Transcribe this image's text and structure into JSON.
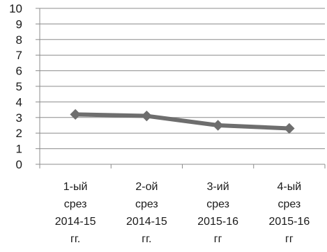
{
  "chart_data": {
    "type": "line",
    "categories": [
      [
        "1-ый",
        "срез",
        "2014-15",
        "гг."
      ],
      [
        "2-ой",
        "срез",
        "2014-15",
        "гг."
      ],
      [
        "3-ий",
        "срез",
        "2015-16",
        "гг"
      ],
      [
        "4-ый",
        "срез",
        "2015-16",
        "гг"
      ]
    ],
    "series": [
      {
        "values": [
          3.2,
          3.1,
          2.5,
          2.3
        ]
      }
    ],
    "ylim": [
      0,
      10
    ],
    "yticks": [
      "0",
      "1",
      "2",
      "3",
      "4",
      "5",
      "6",
      "7",
      "8",
      "9",
      "10"
    ],
    "grid": true,
    "legend": "none",
    "colors": {
      "series": "#6e6e6e",
      "grid": "#8c8c8c",
      "text": "#1a1a1a"
    }
  }
}
